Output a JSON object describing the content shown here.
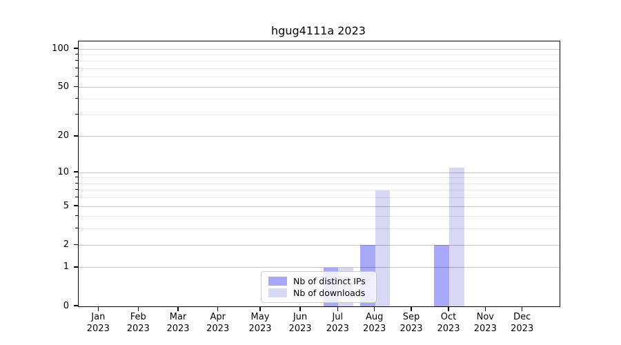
{
  "chart_data": {
    "type": "bar",
    "title": "hgug4111a 2023",
    "categories": [
      "Jan",
      "Feb",
      "Mar",
      "Apr",
      "May",
      "Jun",
      "Jul",
      "Aug",
      "Sep",
      "Oct",
      "Nov",
      "Dec"
    ],
    "year_label": "2023",
    "series": [
      {
        "name": "Nb of distinct IPs",
        "color": "#a8a8f8",
        "values": [
          0,
          0,
          0,
          0,
          0,
          0,
          1,
          2,
          0,
          2,
          0,
          0
        ]
      },
      {
        "name": "Nb of downloads",
        "color": "#d8d8f5",
        "values": [
          0,
          0,
          0,
          0,
          0,
          0,
          1,
          7,
          0,
          11,
          0,
          0
        ]
      }
    ],
    "xlabel": "",
    "ylabel": "",
    "yscale": "log10(value+1)",
    "ylim": [
      0,
      115
    ],
    "ytick_values": [
      0,
      1,
      2,
      5,
      10,
      20,
      50,
      100
    ],
    "major_gridlines": [
      1,
      2,
      5,
      10,
      20,
      50,
      100
    ],
    "minor_gridlines": [
      3,
      4,
      6,
      7,
      8,
      9,
      30,
      40,
      60,
      70,
      80,
      90
    ],
    "grid": true,
    "legend_position": "lower center"
  }
}
